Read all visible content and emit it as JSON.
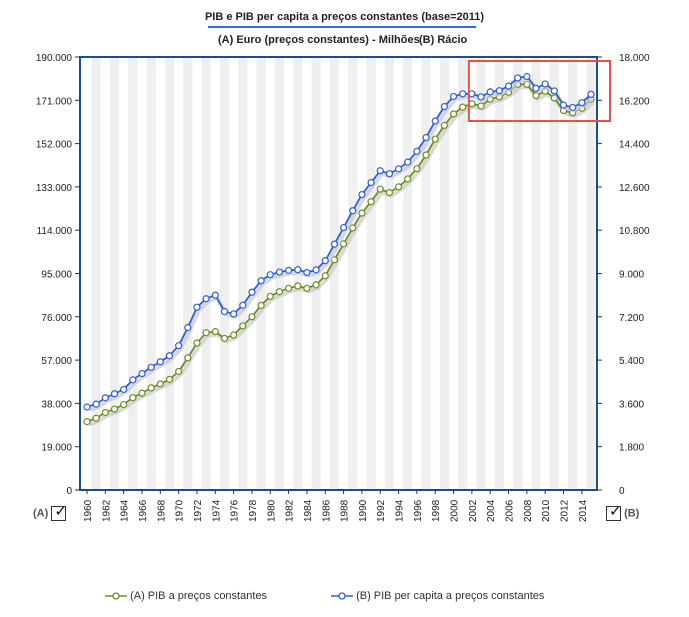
{
  "title": "PIB e PIB per capita a preços constantes (base=2011)",
  "subtitle_a": "(A) Euro (preços constantes) - Milhões",
  "subtitle_b": "(B) Rácio",
  "toggle_a_label": "(A)",
  "toggle_b_label": "(B)",
  "legend": {
    "a": "(A) PIB a preços constantes",
    "b": "(B) PIB per capita a preços constantes"
  },
  "colors": {
    "series_a": "#6b8e23",
    "series_b": "#2f5fd3",
    "frame": "#1a4f8a",
    "highlight": "#e8504a"
  },
  "chart_data": {
    "type": "line",
    "x": [
      1960,
      1961,
      1962,
      1963,
      1964,
      1965,
      1966,
      1967,
      1968,
      1969,
      1970,
      1971,
      1972,
      1973,
      1974,
      1975,
      1976,
      1977,
      1978,
      1979,
      1980,
      1981,
      1982,
      1983,
      1984,
      1985,
      1986,
      1987,
      1988,
      1989,
      1990,
      1991,
      1992,
      1993,
      1994,
      1995,
      1996,
      1997,
      1998,
      1999,
      2000,
      2001,
      2002,
      2003,
      2004,
      2005,
      2006,
      2007,
      2008,
      2009,
      2010,
      2011,
      2012,
      2013,
      2014,
      2015
    ],
    "x_tick_labels": [
      "1960",
      "1962",
      "1964",
      "1966",
      "1968",
      "1970",
      "1972",
      "1974",
      "1976",
      "1978",
      "1980",
      "1982",
      "1984",
      "1986",
      "1988",
      "1990",
      "1992",
      "1994",
      "1996",
      "1998",
      "2000",
      "2002",
      "2004",
      "2006",
      "2008",
      "2010",
      "2012",
      "2014"
    ],
    "y_left_ticks": [
      "0",
      "19.000",
      "38.000",
      "57.000",
      "76.000",
      "95.000",
      "114.000",
      "133.000",
      "152.000",
      "171.000",
      "190.000"
    ],
    "y_right_ticks": [
      "0",
      "1.800",
      "3.600",
      "5.400",
      "7.200",
      "9.000",
      "10.800",
      "12.600",
      "14.400",
      "16.200",
      "18.000"
    ],
    "y_left_range": [
      0,
      190000
    ],
    "y_right_range": [
      0,
      18000
    ],
    "series": [
      {
        "name": "(A) PIB a preços constantes",
        "axis": "left",
        "values": [
          30000,
          31500,
          34000,
          35500,
          37500,
          40500,
          42500,
          44800,
          46500,
          48500,
          52000,
          58000,
          64500,
          69000,
          69500,
          66500,
          68000,
          72000,
          76000,
          81000,
          85000,
          87000,
          88500,
          89500,
          88500,
          90000,
          94000,
          101000,
          108000,
          115000,
          121500,
          126500,
          132000,
          130500,
          133000,
          136500,
          141000,
          147000,
          154000,
          160000,
          165000,
          168000,
          169500,
          168500,
          171500,
          172500,
          174500,
          178000,
          178000,
          173000,
          175000,
          172000,
          166500,
          165500,
          167500,
          171500
        ]
      },
      {
        "name": "(B) PIB per capita a preços constantes",
        "axis": "right",
        "values": [
          3450,
          3570,
          3830,
          4000,
          4180,
          4580,
          4840,
          5100,
          5330,
          5580,
          6000,
          6750,
          7600,
          7950,
          8100,
          7420,
          7320,
          7680,
          8220,
          8700,
          8950,
          9060,
          9130,
          9160,
          9040,
          9150,
          9530,
          10220,
          10910,
          11610,
          12280,
          12780,
          13270,
          13150,
          13350,
          13630,
          14080,
          14650,
          15340,
          15940,
          16360,
          16470,
          16470,
          16340,
          16550,
          16600,
          16790,
          17130,
          17190,
          16700,
          16880,
          16590,
          16000,
          15900,
          16100,
          16450
        ]
      }
    ],
    "grid": "vertical alternating bands",
    "legend_position": "bottom",
    "annotation": "red rectangle highlighting 2002-2015 region of series B"
  }
}
